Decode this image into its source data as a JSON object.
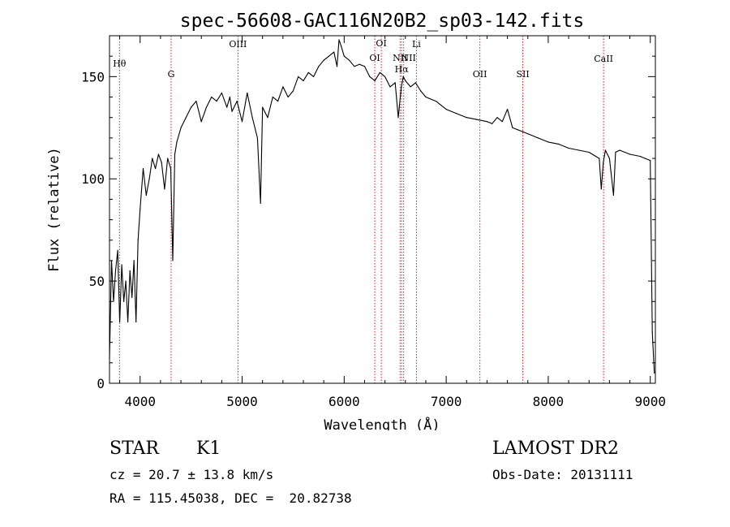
{
  "chart_data": {
    "type": "line",
    "title": "spec-56608-GAC116N20B2_sp03-142.fits",
    "xlabel": "Wavelength (Å)",
    "ylabel": "Flux (relative)",
    "xlim": [
      3700,
      9050
    ],
    "ylim": [
      0,
      170
    ],
    "xticks": [
      4000,
      5000,
      6000,
      7000,
      8000,
      9000
    ],
    "yticks": [
      0,
      50,
      100,
      150
    ],
    "grid": false,
    "series": [
      {
        "name": "spectrum",
        "x": [
          3700,
          3720,
          3740,
          3760,
          3780,
          3800,
          3820,
          3840,
          3860,
          3880,
          3900,
          3920,
          3940,
          3960,
          3980,
          4000,
          4030,
          4060,
          4090,
          4120,
          4150,
          4180,
          4210,
          4240,
          4270,
          4300,
          4320,
          4340,
          4360,
          4400,
          4450,
          4500,
          4550,
          4600,
          4650,
          4700,
          4750,
          4800,
          4850,
          4880,
          4900,
          4950,
          5000,
          5050,
          5100,
          5150,
          5180,
          5200,
          5250,
          5300,
          5350,
          5400,
          5450,
          5500,
          5550,
          5600,
          5650,
          5700,
          5750,
          5800,
          5850,
          5900,
          5930,
          5950,
          5970,
          6000,
          6050,
          6100,
          6150,
          6200,
          6250,
          6300,
          6350,
          6400,
          6450,
          6500,
          6530,
          6560,
          6580,
          6600,
          6650,
          6700,
          6750,
          6800,
          6900,
          7000,
          7100,
          7200,
          7300,
          7400,
          7450,
          7500,
          7550,
          7600,
          7650,
          7700,
          7750,
          7800,
          7900,
          8000,
          8100,
          8200,
          8300,
          8400,
          8500,
          8520,
          8540,
          8560,
          8600,
          8640,
          8660,
          8700,
          8800,
          8900,
          8950,
          9000,
          9020,
          9040
        ],
        "values": [
          12,
          60,
          40,
          55,
          65,
          30,
          58,
          40,
          50,
          30,
          55,
          42,
          60,
          30,
          70,
          85,
          105,
          92,
          100,
          110,
          105,
          112,
          108,
          95,
          110,
          105,
          60,
          112,
          118,
          125,
          130,
          135,
          138,
          128,
          135,
          140,
          138,
          142,
          135,
          140,
          133,
          138,
          128,
          142,
          130,
          120,
          88,
          135,
          130,
          140,
          138,
          145,
          140,
          143,
          150,
          148,
          152,
          150,
          155,
          158,
          160,
          162,
          155,
          168,
          165,
          160,
          158,
          155,
          156,
          155,
          150,
          148,
          152,
          150,
          145,
          147,
          130,
          145,
          150,
          148,
          145,
          147,
          143,
          140,
          138,
          134,
          132,
          130,
          129,
          128,
          127,
          130,
          128,
          134,
          125,
          124,
          123,
          122,
          120,
          118,
          117,
          115,
          114,
          113,
          110,
          95,
          108,
          114,
          110,
          92,
          113,
          114,
          112,
          111,
          110,
          109,
          25,
          5
        ]
      }
    ],
    "lines": [
      {
        "label": "Hθ",
        "x": 3798
      },
      {
        "label": "G",
        "x": 4304
      },
      {
        "label": "OIII",
        "x": 4959
      },
      {
        "label": "OI",
        "x": 6300
      },
      {
        "label": "OI",
        "x": 6364
      },
      {
        "label": "NII",
        "x": 6548
      },
      {
        "label": "Hα",
        "x": 6563
      },
      {
        "label": "NII",
        "x": 6583
      },
      {
        "label": "Li",
        "x": 6708
      },
      {
        "label": "OII",
        "x": 7330
      },
      {
        "label": "SII",
        "x": 7751
      },
      {
        "label": "CaII",
        "x": 8542
      }
    ]
  },
  "info": {
    "class": "STAR",
    "subclass": "K1",
    "survey": "LAMOST DR2",
    "redshift": "cz = 20.7 ± 13.8 km/s",
    "obs_date": "Obs-Date: 20131111",
    "coords": "RA = 115.45038, DEC =  20.82738"
  }
}
